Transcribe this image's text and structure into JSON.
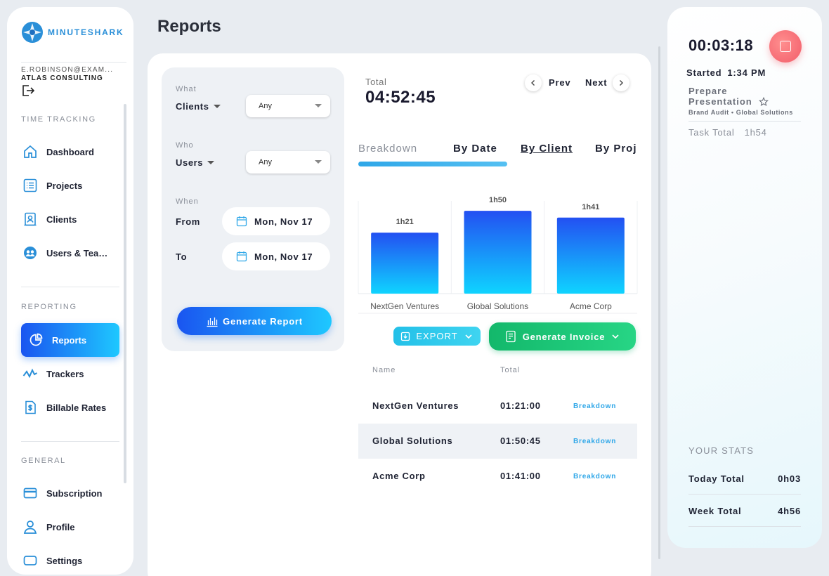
{
  "brand": {
    "name": "MINUTESHARK",
    "accent": "#2a8fd8"
  },
  "account": {
    "email": "E.ROBINSON@EXAM...",
    "organization": "ATLAS CONSULTING"
  },
  "sidebar": {
    "sections": [
      {
        "title": "TIME TRACKING"
      },
      {
        "title": "REPORTING"
      },
      {
        "title": "GENERAL"
      }
    ],
    "items": [
      {
        "label": "Dashboard",
        "icon": "home-icon"
      },
      {
        "label": "Projects",
        "icon": "list-icon"
      },
      {
        "label": "Clients",
        "icon": "client-card-icon"
      },
      {
        "label": "Users & Teams",
        "icon": "users-icon"
      },
      {
        "label": "Reports",
        "icon": "reports-icon",
        "active": true
      },
      {
        "label": "Trackers",
        "icon": "activity-icon"
      },
      {
        "label": "Billable Rates",
        "icon": "dollar-doc-icon"
      },
      {
        "label": "Subscription",
        "icon": "card-icon"
      },
      {
        "label": "Profile",
        "icon": "user-icon"
      },
      {
        "label": "Settings",
        "icon": "settings-icon"
      }
    ]
  },
  "page": {
    "title": "Reports"
  },
  "filters": {
    "what": {
      "caption": "What",
      "field": "Clients",
      "value": "Any"
    },
    "who": {
      "caption": "Who",
      "field": "Users",
      "value": "Any"
    },
    "when": {
      "caption": "When",
      "from_label": "From",
      "from_value": "Mon, Nov 17",
      "to_label": "To",
      "to_value": "Mon, Nov 17"
    },
    "generate_label": "Generate Report"
  },
  "summary": {
    "total_label": "Total",
    "total_value": "04:52:45",
    "prev_label": "Prev",
    "next_label": "Next"
  },
  "tabs": [
    {
      "label": "Breakdown",
      "active": true
    },
    {
      "label": "By Date"
    },
    {
      "label": "By Client"
    },
    {
      "label": "By Project"
    }
  ],
  "chart_data": {
    "type": "bar",
    "categories": [
      "NextGen Ventures",
      "Global Solutions",
      "Acme Corp"
    ],
    "values": [
      81,
      110,
      101
    ],
    "data_labels": [
      "1h21",
      "1h50",
      "1h41"
    ],
    "unit": "minutes",
    "ylim": [
      0,
      126
    ],
    "grid": false,
    "colors": {
      "top": "#2350f2",
      "bottom": "#0fd4ff"
    }
  },
  "actions": {
    "export_label": "EXPORT",
    "invoice_label": "Generate Invoice"
  },
  "table": {
    "headers": {
      "name": "Name",
      "total": "Total"
    },
    "rows": [
      {
        "name": "NextGen Ventures",
        "total": "01:21:00",
        "link": "Breakdown"
      },
      {
        "name": "Global Solutions",
        "total": "01:50:45",
        "link": "Breakdown"
      },
      {
        "name": "Acme Corp",
        "total": "01:41:00",
        "link": "Breakdown"
      }
    ]
  },
  "timer": {
    "elapsed": "00:03:18",
    "started_label": "Started",
    "started_time": "1:34 PM",
    "task": "Prepare Presentation",
    "project_client": "Brand Audit • Global Solutions",
    "task_total_label": "Task Total",
    "task_total_value": "1h54",
    "stop_color": "#f25d6a"
  },
  "stats": {
    "title": "YOUR STATS",
    "today_label": "Today Total",
    "today_value": "0h03",
    "week_label": "Week Total",
    "week_value": "4h56"
  }
}
